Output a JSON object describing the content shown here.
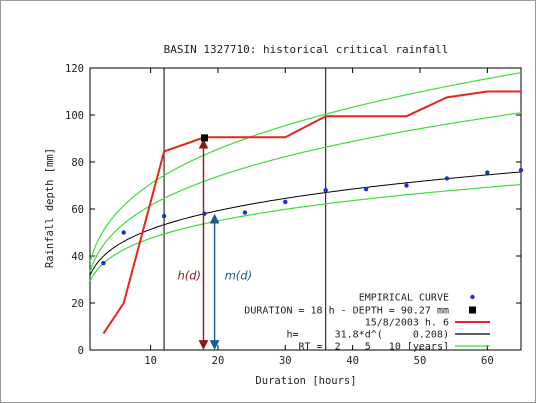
{
  "chart_data": {
    "type": "line",
    "title": "BASIN 1327710: historical critical rainfall",
    "xlabel": "Duration [hours]",
    "ylabel": "Rainfall depth [mm]",
    "xlim": [
      1,
      65
    ],
    "ylim": [
      0,
      120
    ],
    "x_ticks": [
      10,
      20,
      30,
      40,
      50,
      60
    ],
    "y_ticks": [
      0,
      20,
      40,
      60,
      80,
      100,
      120
    ],
    "grid": false,
    "legend_position": "bottom-right",
    "legend": [
      {
        "label": "EMPIRICAL CURVE",
        "style": "points",
        "color": "#1a2fd0"
      },
      {
        "label": "DURATION = 18 h - DEPTH = 90.27 mm",
        "style": "marker",
        "color": "#000000"
      },
      {
        "label": "15/8/2003 h. 6",
        "style": "line",
        "color": "#e8251a"
      },
      {
        "label": "h=      31.8*d^(     0.208)",
        "style": "line",
        "color": "#000000"
      },
      {
        "label": "RT =  2    5   10 [years]",
        "style": "line",
        "color": "#3cdc3c"
      }
    ],
    "vertical_lines": [
      12,
      36
    ],
    "critical_point": {
      "duration": 18,
      "depth": 90.27
    },
    "annotations": {
      "hd_label": "h(d)",
      "md_label": "m(d)",
      "hd_color": "#8b1a1a",
      "md_color": "#1c5a8c"
    },
    "series": [
      {
        "name": "EMPIRICAL CURVE",
        "style": "points",
        "color": "#1a2fd0",
        "x": [
          3,
          6,
          12,
          18,
          24,
          30,
          36,
          42,
          48,
          54,
          60,
          66
        ],
        "y": [
          37,
          50,
          57,
          58,
          58.5,
          63,
          68,
          68.5,
          70,
          73,
          75.5,
          76.5
        ]
      },
      {
        "name": "15/8/2003 h. 6",
        "style": "line",
        "color": "#e8251a",
        "x": [
          3,
          6,
          12,
          18,
          24,
          30,
          36,
          42,
          48,
          54,
          60,
          66
        ],
        "y": [
          7,
          20,
          84.5,
          90.5,
          90.5,
          90.5,
          99.5,
          99.5,
          99.5,
          107.5,
          110,
          110
        ]
      },
      {
        "name": "h=      31.8*d^(     0.208)",
        "style": "line",
        "color": "#000000",
        "curve": {
          "a": 31.8,
          "n": 0.208
        }
      },
      {
        "name": "RT 2",
        "style": "line",
        "color": "#3cdc3c",
        "curve": {
          "a": 29.3,
          "n": 0.21
        }
      },
      {
        "name": "RT 5",
        "style": "line",
        "color": "#3cdc3c",
        "curve": {
          "a": 33.4,
          "n": 0.265
        }
      },
      {
        "name": "RT 10",
        "style": "line",
        "color": "#3cdc3c",
        "curve": {
          "a": 37.6,
          "n": 0.274
        }
      }
    ]
  }
}
